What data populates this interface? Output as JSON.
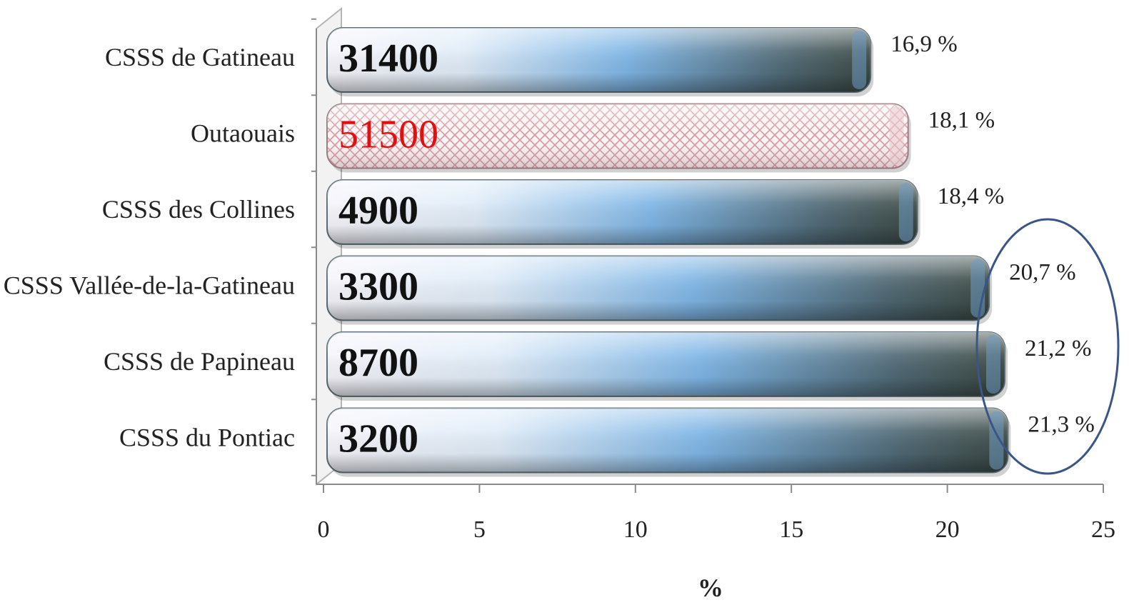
{
  "chart_data": {
    "type": "bar",
    "orientation": "horizontal",
    "categories": [
      "CSSS de Gatineau",
      "Outaouais",
      "CSSS des Collines",
      "CSSS Vallée-de-la-Gatineau",
      "CSSS de Papineau",
      "CSSS du Pontiac"
    ],
    "values": [
      16.9,
      18.1,
      18.4,
      20.7,
      21.2,
      21.3
    ],
    "value_labels": [
      "16,9 %",
      "18,1 %",
      "18,4 %",
      "20,7 %",
      "21,2 %",
      "21,3 %"
    ],
    "counts": [
      "31400",
      "51500",
      "4900",
      "3300",
      "8700",
      "3200"
    ],
    "highlighted_category": "Outaouais",
    "xlabel": "%",
    "ylabel": "",
    "xlim": [
      0,
      25
    ],
    "xticks": [
      "0",
      "5",
      "10",
      "15",
      "20",
      "25"
    ],
    "annotation": "ellipse around 20,7 %, 21,2 % and 21,3 %",
    "colors": {
      "bar_light": "#f3f4fb",
      "bar_mid": "#7fb6e6",
      "bar_dark": "#4c5850",
      "highlight_pattern": "#d6949c",
      "highlight_text": "#e01010",
      "ellipse": "#3a5587"
    }
  }
}
